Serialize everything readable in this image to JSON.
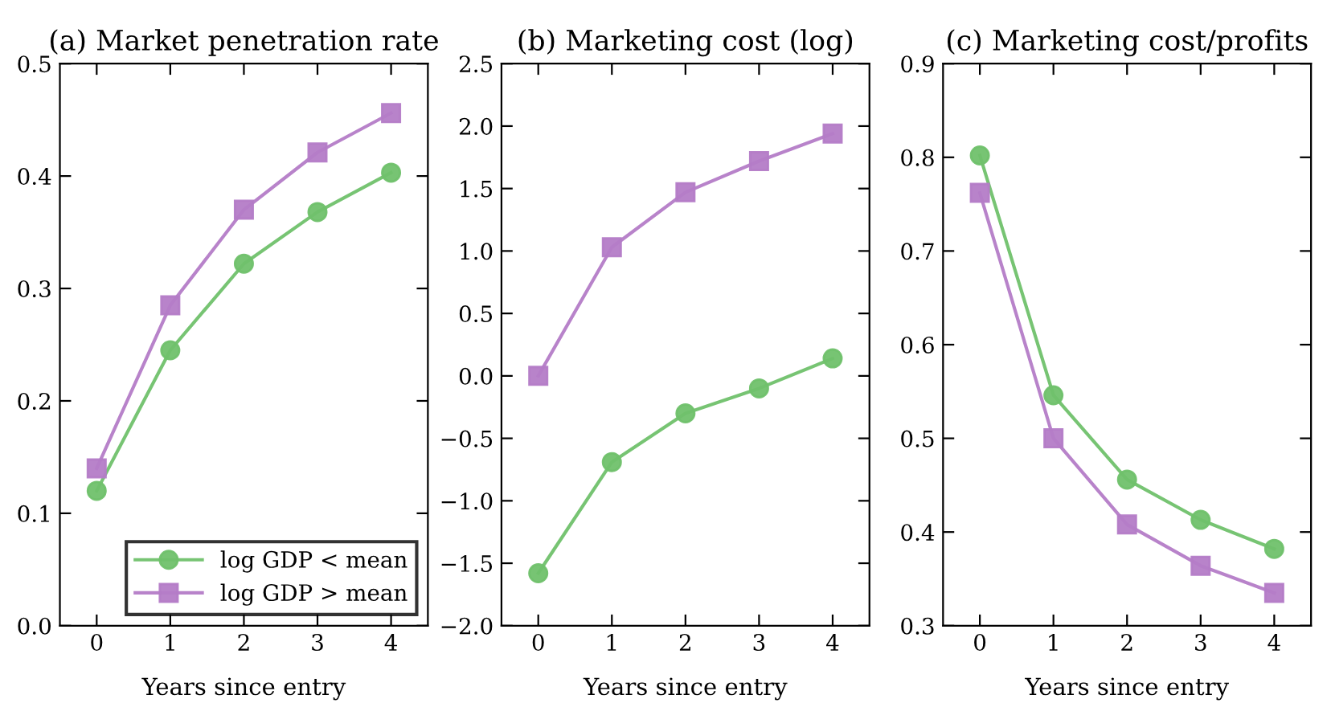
{
  "chart_data": [
    {
      "type": "line",
      "title": "(a) Market penetration rate",
      "xlabel": "Years since entry",
      "x": [
        0,
        1,
        2,
        3,
        4
      ],
      "xlim": [
        -0.5,
        4.5
      ],
      "xticks": [
        0,
        1,
        2,
        3,
        4
      ],
      "ylim": [
        0,
        0.5
      ],
      "yticks": [
        {
          "value": 0,
          "label": "0.0"
        },
        0.1,
        0.2,
        0.3,
        0.4,
        0.5
      ],
      "grid": false,
      "legend": "bottom right",
      "series": [
        {
          "name": "log GDP < mean",
          "color": "#70c16b",
          "marker": "circle",
          "values": [
            0.12,
            0.245,
            0.322,
            0.368,
            0.403
          ]
        },
        {
          "name": "log GDP > mean",
          "color": "#b47cc7",
          "marker": "square",
          "values": [
            0.14,
            0.285,
            0.37,
            0.421,
            0.456
          ]
        }
      ]
    },
    {
      "type": "line",
      "title": "(b) Marketing cost (log)",
      "xlabel": "Years since entry",
      "x": [
        0,
        1,
        2,
        3,
        4
      ],
      "xlim": [
        -0.5,
        4.5
      ],
      "xticks": [
        0,
        1,
        2,
        3,
        4
      ],
      "ylim": [
        -2,
        2.5
      ],
      "yticks": [
        {
          "value": -2,
          "label": "−2.0"
        },
        {
          "value": -1.5,
          "label": "−1.5"
        },
        {
          "value": -1,
          "label": "−1.0"
        },
        {
          "value": -0.5,
          "label": "−0.5"
        },
        {
          "value": 0,
          "label": "0.0"
        },
        0.5,
        {
          "value": 1,
          "label": "1.0"
        },
        1.5,
        {
          "value": 2,
          "label": "2.0"
        },
        2.5
      ],
      "grid": false,
      "series": [
        {
          "color": "#70c16b",
          "marker": "circle",
          "values": [
            -1.58,
            -0.69,
            -0.3,
            -0.1,
            0.14
          ]
        },
        {
          "color": "#b47cc7",
          "marker": "square",
          "values": [
            0.0,
            1.03,
            1.47,
            1.72,
            1.94
          ]
        }
      ]
    },
    {
      "type": "line",
      "title": "(c) Marketing cost/profits",
      "xlabel": "Years since entry",
      "x": [
        0,
        1,
        2,
        3,
        4
      ],
      "xlim": [
        -0.5,
        4.5
      ],
      "xticks": [
        0,
        1,
        2,
        3,
        4
      ],
      "ylim": [
        0.3,
        0.9
      ],
      "yticks": [
        0.3,
        0.4,
        0.5,
        0.6,
        0.7,
        0.8,
        0.9
      ],
      "grid": false,
      "series": [
        {
          "color": "#70c16b",
          "marker": "circle",
          "values": [
            0.802,
            0.546,
            0.456,
            0.413,
            0.382
          ]
        },
        {
          "color": "#b47cc7",
          "marker": "square",
          "values": [
            0.762,
            0.5,
            0.408,
            0.364,
            0.335
          ]
        }
      ]
    }
  ]
}
